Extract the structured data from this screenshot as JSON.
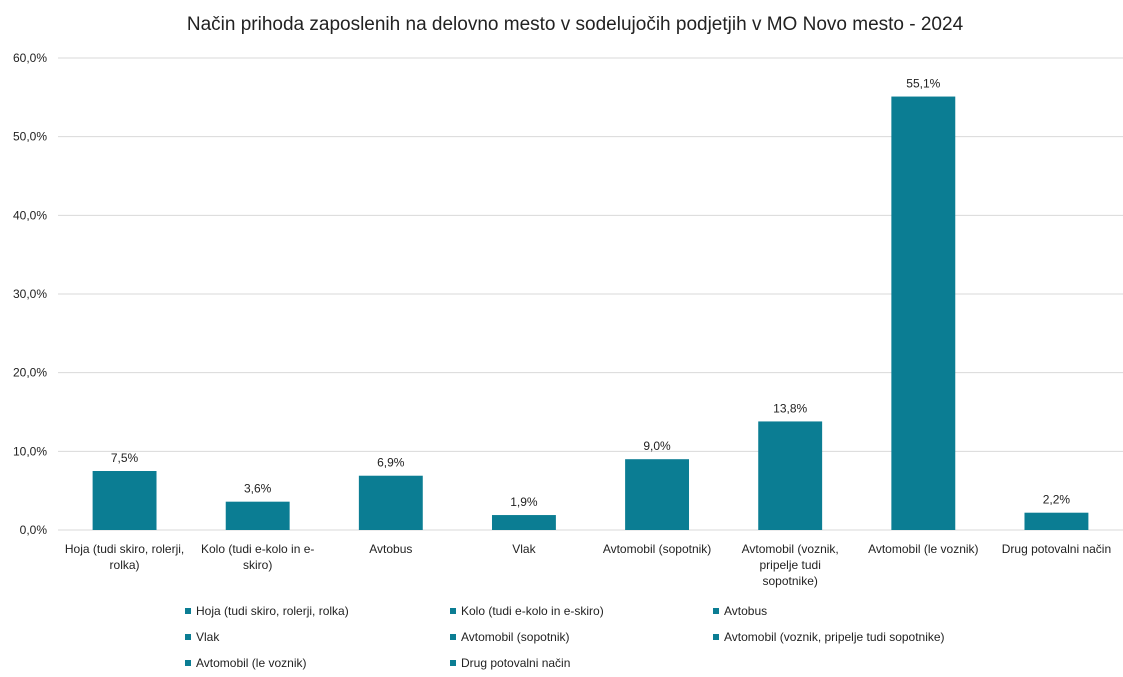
{
  "chart_data": {
    "type": "bar",
    "title": "Način prihoda zaposlenih na delovno mesto v sodelujočih podjetjih v MO Novo mesto - 2024",
    "categories": [
      "Hoja (tudi skiro, rolerji, rolka)",
      "Kolo (tudi e-kolo in e-skiro)",
      "Avtobus",
      "Vlak",
      "Avtomobil (sopotnik)",
      "Avtomobil (voznik, pripelje tudi sopotnike)",
      "Avtomobil (le voznik)",
      "Drug potovalni način"
    ],
    "category_label_lines": [
      [
        "Hoja (tudi skiro, rolerji,",
        "rolka)"
      ],
      [
        "Kolo (tudi e-kolo in e-",
        "skiro)"
      ],
      [
        "Avtobus"
      ],
      [
        "Vlak"
      ],
      [
        "Avtomobil (sopotnik)"
      ],
      [
        "Avtomobil (voznik,",
        "pripelje tudi",
        "sopotnike)"
      ],
      [
        "Avtomobil (le voznik)"
      ],
      [
        "Drug potovalni način"
      ]
    ],
    "values": [
      7.5,
      3.6,
      6.9,
      1.9,
      9.0,
      13.8,
      55.1,
      2.2
    ],
    "data_labels": [
      "7,5%",
      "3,6%",
      "6,9%",
      "1,9%",
      "9,0%",
      "13,8%",
      "55,1%",
      "2,2%"
    ],
    "y_ticks": [
      0,
      10,
      20,
      30,
      40,
      50,
      60
    ],
    "y_tick_labels": [
      "0,0%",
      "10,0%",
      "20,0%",
      "30,0%",
      "40,0%",
      "50,0%",
      "60,0%"
    ],
    "ylim": [
      0,
      60
    ],
    "xlabel": "",
    "ylabel": "",
    "grid": true,
    "legend_position": "bottom",
    "bar_color": "#0b7d93",
    "grid_color": "#d9d9d9"
  }
}
